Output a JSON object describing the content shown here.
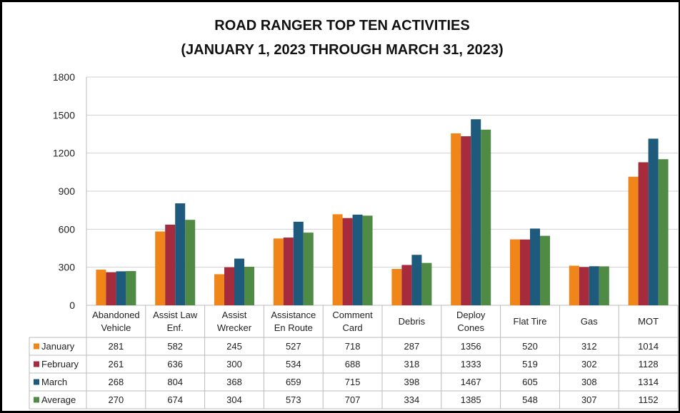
{
  "chart_data": {
    "type": "bar",
    "title": "ROAD RANGER TOP TEN ACTIVITIES",
    "subtitle": "(JANUARY 1, 2023 THROUGH MARCH 31, 2023)",
    "categories": [
      "Abandoned Vehicle",
      "Assist Law Enf.",
      "Assist Wrecker",
      "Assistance En Route",
      "Comment Card",
      "Debris",
      "Deploy Cones",
      "Flat Tire",
      "Gas",
      "MOT"
    ],
    "series": [
      {
        "name": "January",
        "color": "#f08519",
        "values": [
          281,
          582,
          245,
          527,
          718,
          287,
          1356,
          520,
          312,
          1014
        ]
      },
      {
        "name": "February",
        "color": "#a62b3d",
        "values": [
          261,
          636,
          300,
          534,
          688,
          318,
          1333,
          519,
          302,
          1128
        ]
      },
      {
        "name": "March",
        "color": "#1e5a7c",
        "values": [
          268,
          804,
          368,
          659,
          715,
          398,
          1467,
          605,
          308,
          1314
        ]
      },
      {
        "name": "Average",
        "color": "#4f8b45",
        "values": [
          270,
          674,
          304,
          573,
          707,
          334,
          1385,
          548,
          307,
          1152
        ]
      }
    ],
    "ylim": [
      0,
      1800
    ],
    "yticks": [
      0,
      300,
      600,
      900,
      1200,
      1500,
      1800
    ],
    "grid": true
  }
}
